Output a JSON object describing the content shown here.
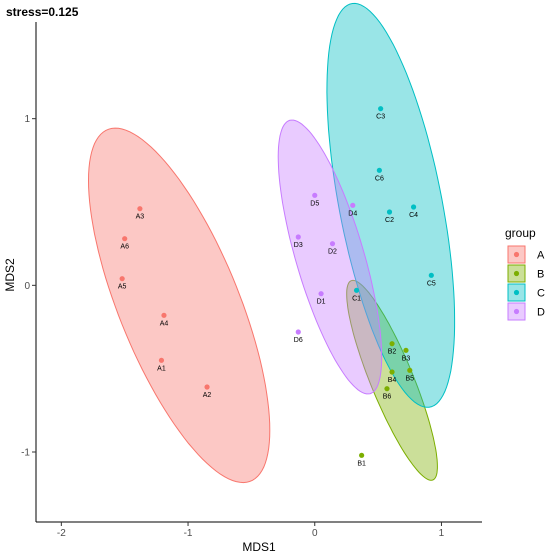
{
  "chart_data": {
    "type": "scatter",
    "title": "stress=0.125",
    "xlabel": "MDS1",
    "ylabel": "MDS2",
    "xlim": [
      -2.2,
      1.32
    ],
    "ylim": [
      -1.42,
      1.58
    ],
    "xticks": [
      -2,
      -1,
      0,
      1
    ],
    "yticks": [
      -1,
      0,
      1
    ],
    "grid": false,
    "legend": {
      "title": "group",
      "position": "right"
    },
    "series": [
      {
        "name": "A",
        "color": "#F8766D",
        "points": [
          {
            "label": "A1",
            "x": -1.21,
            "y": -0.45
          },
          {
            "label": "A2",
            "x": -0.85,
            "y": -0.61
          },
          {
            "label": "A3",
            "x": -1.38,
            "y": 0.46
          },
          {
            "label": "A4",
            "x": -1.19,
            "y": -0.18
          },
          {
            "label": "A5",
            "x": -1.52,
            "y": 0.04
          },
          {
            "label": "A6",
            "x": -1.5,
            "y": 0.28
          }
        ],
        "ellipse": {
          "cx": -1.07,
          "cy": -0.12,
          "rx": 1.2,
          "ry": 0.45,
          "angle": -60
        }
      },
      {
        "name": "B",
        "color": "#7CAE00",
        "points": [
          {
            "label": "B1",
            "x": 0.37,
            "y": -1.02
          },
          {
            "label": "B2",
            "x": 0.61,
            "y": -0.35
          },
          {
            "label": "B3",
            "x": 0.72,
            "y": -0.39
          },
          {
            "label": "B4",
            "x": 0.61,
            "y": -0.52
          },
          {
            "label": "B5",
            "x": 0.75,
            "y": -0.51
          },
          {
            "label": "B6",
            "x": 0.57,
            "y": -0.62
          }
        ],
        "ellipse": {
          "cx": 0.61,
          "cy": -0.57,
          "rx": 0.68,
          "ry": 0.16,
          "angle": -61
        }
      },
      {
        "name": "C",
        "color": "#00BFC4",
        "points": [
          {
            "label": "C1",
            "x": 0.33,
            "y": -0.03
          },
          {
            "label": "C2",
            "x": 0.59,
            "y": 0.44
          },
          {
            "label": "C3",
            "x": 0.52,
            "y": 1.06
          },
          {
            "label": "C4",
            "x": 0.78,
            "y": 0.47
          },
          {
            "label": "C5",
            "x": 0.92,
            "y": 0.06
          },
          {
            "label": "C6",
            "x": 0.51,
            "y": 0.69
          }
        ],
        "ellipse": {
          "cx": 0.6,
          "cy": 0.48,
          "rx": 1.25,
          "ry": 0.4,
          "angle": -75
        }
      },
      {
        "name": "D",
        "color": "#C77CFF",
        "points": [
          {
            "label": "D1",
            "x": 0.05,
            "y": -0.05
          },
          {
            "label": "D2",
            "x": 0.14,
            "y": 0.25
          },
          {
            "label": "D3",
            "x": -0.13,
            "y": 0.29
          },
          {
            "label": "D4",
            "x": 0.3,
            "y": 0.48
          },
          {
            "label": "D5",
            "x": 0.0,
            "y": 0.54
          },
          {
            "label": "D6",
            "x": -0.13,
            "y": -0.28
          }
        ],
        "ellipse": {
          "cx": 0.12,
          "cy": 0.17,
          "rx": 0.88,
          "ry": 0.26,
          "angle": -68
        }
      }
    ]
  }
}
